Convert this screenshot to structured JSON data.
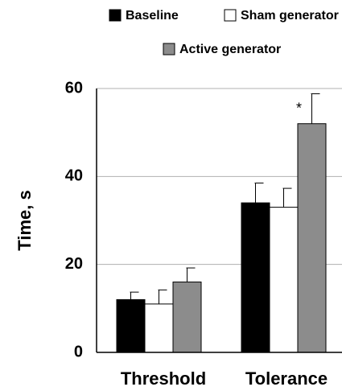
{
  "chart_data": {
    "type": "bar",
    "categories": [
      "Threshold",
      "Tolerance"
    ],
    "series": [
      {
        "name": "Baseline",
        "color": "#000000",
        "values": [
          12,
          34
        ],
        "errors": [
          1.7,
          4.5
        ]
      },
      {
        "name": "Sham generator",
        "color": "#ffffff",
        "values": [
          11,
          33
        ],
        "errors": [
          3.2,
          4.3
        ]
      },
      {
        "name": "Active generator",
        "color": "#8c8c8c",
        "values": [
          16,
          52
        ],
        "errors": [
          3.2,
          6.8
        ]
      }
    ],
    "ylabel": "Time, s",
    "ylim": [
      0,
      60
    ],
    "yticks": [
      "0",
      "20",
      "40",
      "60"
    ],
    "grid": true,
    "legend_position": "top",
    "annotations": [
      {
        "text": "*",
        "category": "Tolerance",
        "series": "Active generator"
      }
    ]
  }
}
